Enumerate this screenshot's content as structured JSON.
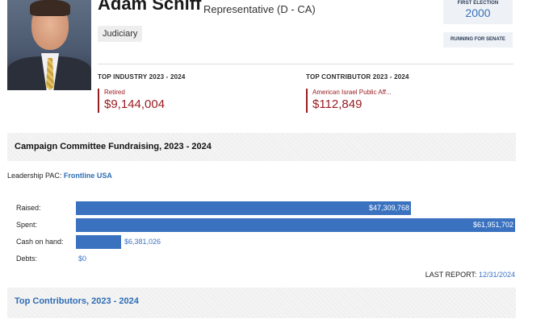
{
  "profile": {
    "name": "Adam Schiff",
    "title": "Representative (D - CA)",
    "committee_tag": "Judiciary",
    "first_election_label": "FIRST ELECTION",
    "first_election_year": "2000",
    "status_button": "RUNNING FOR SENATE"
  },
  "top_industry": {
    "heading": "TOP INDUSTRY 2023 - 2024",
    "name": "Retired",
    "amount": "$9,144,004"
  },
  "top_contributor": {
    "heading": "TOP CONTRIBUTOR 2023 - 2024",
    "name": "American Israel Public Aff...",
    "amount": "$112,849"
  },
  "fundraising": {
    "section_title": "Campaign Committee Fundraising, 2023 - 2024",
    "pac_label": "Leadership PAC:",
    "pac_name": "Frontline USA",
    "rows": [
      {
        "label": "Raised:",
        "value": 47309768,
        "display": "$47,309,768"
      },
      {
        "label": "Spent:",
        "value": 61951702,
        "display": "$61,951,702"
      },
      {
        "label": "Cash on hand:",
        "value": 6381026,
        "display": "$6,381,026"
      },
      {
        "label": "Debts:",
        "value": 0,
        "display": "$0"
      }
    ],
    "last_report_label": "LAST REPORT:",
    "last_report_date": "12/31/2024"
  },
  "contributors_section": {
    "title": "Top Contributors, 2023 - 2024"
  },
  "colors": {
    "accent_blue": "#3a72c0",
    "link_blue": "#2d6cb4",
    "accent_red": "#9a1c22"
  }
}
